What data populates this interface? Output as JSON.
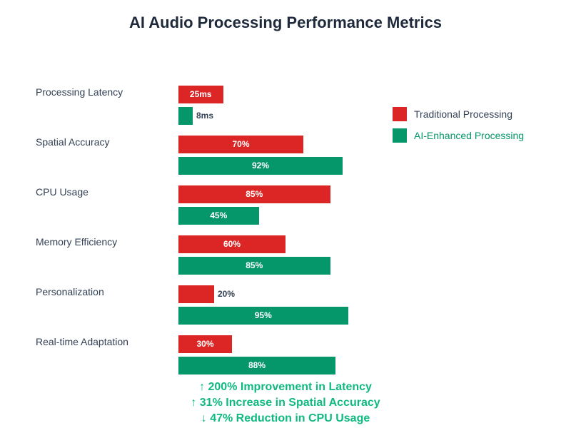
{
  "chart_data": {
    "type": "bar",
    "orientation": "horizontal",
    "title": "AI Audio Processing Performance Metrics",
    "categories": [
      "Processing Latency",
      "Spatial Accuracy",
      "CPU Usage",
      "Memory Efficiency",
      "Personalization",
      "Real-time Adaptation"
    ],
    "series": [
      {
        "name": "Traditional Processing",
        "color": "#dc2626",
        "values": [
          25,
          70,
          85,
          60,
          20,
          30
        ],
        "labels": [
          "25ms",
          "70%",
          "85%",
          "60%",
          "20%",
          "30%"
        ]
      },
      {
        "name": "AI-Enhanced Processing",
        "color": "#059669",
        "values": [
          8,
          92,
          45,
          85,
          95,
          88
        ],
        "labels": [
          "8ms",
          "92%",
          "45%",
          "85%",
          "95%",
          "88%"
        ]
      }
    ],
    "xlim": [
      0,
      100
    ],
    "grid": false,
    "legend_position": "right",
    "annotations": [
      "↑ 200% Improvement in Latency",
      "↑ 31% Increase in Spatial Accuracy",
      "↓ 47% Reduction in CPU Usage"
    ]
  }
}
